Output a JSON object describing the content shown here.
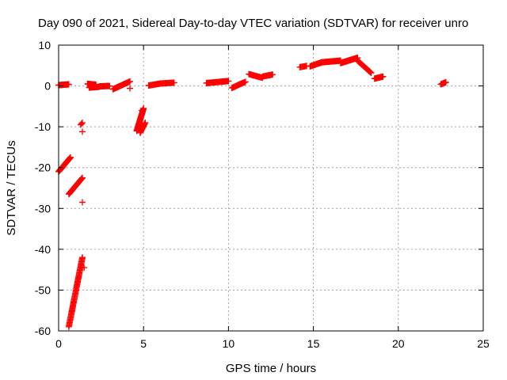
{
  "chart_data": {
    "type": "scatter",
    "title": "Day 090 of 2021, Sidereal Day-to-day VTEC variation (SDTVAR) for receiver unro",
    "xlabel": "GPS time / hours",
    "ylabel": "SDTVAR / TECUs",
    "xlim": [
      0,
      25
    ],
    "ylim": [
      -60,
      10
    ],
    "xticks": [
      0,
      5,
      10,
      15,
      20,
      25
    ],
    "yticks": [
      -60,
      -50,
      -40,
      -30,
      -20,
      -10,
      0,
      10
    ],
    "grid": true,
    "marker": "plus",
    "series_color": "#ff0000",
    "segments": [
      {
        "x": [
          0.0,
          0.6
        ],
        "y": [
          0.2,
          0.4
        ],
        "n": 22
      },
      {
        "x": [
          0.0,
          0.7
        ],
        "y": [
          -21.0,
          -17.5
        ],
        "n": 32
      },
      {
        "x": [
          0.6,
          1.4
        ],
        "y": [
          -26.5,
          -22.5
        ],
        "n": 34
      },
      {
        "x": [
          0.6,
          1.4
        ],
        "y": [
          -59.0,
          -42.0
        ],
        "n": 65
      },
      {
        "x": [
          1.3,
          1.4
        ],
        "y": [
          -9.5,
          -9.0
        ],
        "n": 3
      },
      {
        "x": [
          1.7,
          2.2
        ],
        "y": [
          0.5,
          0.3
        ],
        "n": 22
      },
      {
        "x": [
          1.8,
          2.4
        ],
        "y": [
          -0.4,
          -0.2
        ],
        "n": 14
      },
      {
        "x": [
          2.4,
          3.0
        ],
        "y": [
          -0.1,
          0.0
        ],
        "n": 15
      },
      {
        "x": [
          3.2,
          4.2
        ],
        "y": [
          -0.8,
          1.1
        ],
        "n": 26
      },
      {
        "x": [
          4.6,
          5.0
        ],
        "y": [
          -11.0,
          -5.5
        ],
        "n": 32
      },
      {
        "x": [
          4.8,
          5.1
        ],
        "y": [
          -11.5,
          -9.0
        ],
        "n": 12
      },
      {
        "x": [
          5.3,
          6.0
        ],
        "y": [
          0.1,
          0.6
        ],
        "n": 16
      },
      {
        "x": [
          6.0,
          6.8
        ],
        "y": [
          0.6,
          0.8
        ],
        "n": 16
      },
      {
        "x": [
          8.7,
          10.0
        ],
        "y": [
          0.7,
          1.2
        ],
        "n": 32
      },
      {
        "x": [
          10.2,
          10.6
        ],
        "y": [
          -0.5,
          0.3
        ],
        "n": 10
      },
      {
        "x": [
          10.6,
          11.0
        ],
        "y": [
          0.3,
          1.0
        ],
        "n": 10
      },
      {
        "x": [
          11.2,
          12.0
        ],
        "y": [
          2.9,
          2.0
        ],
        "n": 18
      },
      {
        "x": [
          12.0,
          12.6
        ],
        "y": [
          2.3,
          2.8
        ],
        "n": 12
      },
      {
        "x": [
          14.2,
          14.6
        ],
        "y": [
          4.6,
          4.9
        ],
        "n": 8
      },
      {
        "x": [
          14.8,
          15.5
        ],
        "y": [
          4.8,
          5.8
        ],
        "n": 22
      },
      {
        "x": [
          15.5,
          16.6
        ],
        "y": [
          5.8,
          6.2
        ],
        "n": 32
      },
      {
        "x": [
          16.6,
          17.6
        ],
        "y": [
          5.6,
          6.9
        ],
        "n": 44
      },
      {
        "x": [
          17.6,
          18.4
        ],
        "y": [
          6.2,
          3.2
        ],
        "n": 24
      },
      {
        "x": [
          18.6,
          19.1
        ],
        "y": [
          1.8,
          2.3
        ],
        "n": 14
      },
      {
        "x": [
          22.5,
          22.8
        ],
        "y": [
          0.4,
          0.9
        ],
        "n": 10
      }
    ],
    "isolated_points": [
      {
        "x": 1.4,
        "y": -11.2
      },
      {
        "x": 1.4,
        "y": -28.5
      },
      {
        "x": 1.5,
        "y": -44.5
      },
      {
        "x": 4.2,
        "y": -0.6
      },
      {
        "x": 4.9,
        "y": -6.0
      }
    ]
  }
}
